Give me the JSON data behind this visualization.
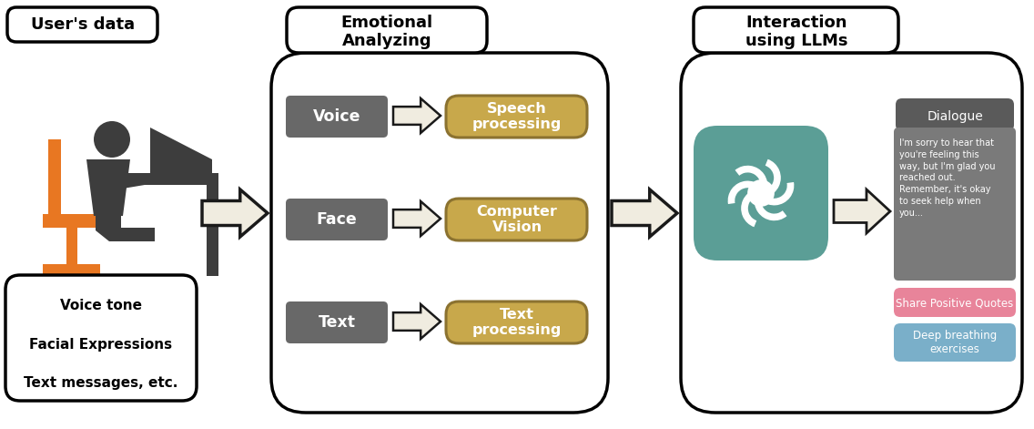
{
  "bg_color": "#ffffff",
  "fig_width": 11.36,
  "fig_height": 4.71,
  "section1_title": "User's data",
  "section1_items": [
    "Voice tone",
    "Facial Expressions",
    "Text messages, etc."
  ],
  "section2_title": "Emotional\nAnalyzing",
  "section2_inputs": [
    "Voice",
    "Face",
    "Text"
  ],
  "section2_outputs": [
    "Speech\nprocessing",
    "Computer\nVision",
    "Text\nprocessing"
  ],
  "section3_title": "Interaction\nusing LLMs",
  "dialogue_title": "Dialogue",
  "dialogue_text": "I'm sorry to hear that\nyou're feeling this\nway, but I'm glad you\nreached out.\nRemember, it's okay\nto seek help when\nyou...",
  "btn1_text": "Share Positive Quotes",
  "btn2_text": "Deep breathing\nexercises",
  "gray_dark": "#3d3d3d",
  "gray_box": "#686868",
  "gold_fill": "#c8a84b",
  "gold_edge": "#8b7230",
  "teal_fill": "#5b9e96",
  "pink_fill": "#e8849a",
  "blue_fill": "#7aafc9",
  "dialogue_bg": "#7a7a7a",
  "dialogue_header": "#5a5a5a",
  "orange_chair": "#e87722",
  "arrow_fill": "#f0ece0",
  "arrow_edge": "#1a1a1a"
}
